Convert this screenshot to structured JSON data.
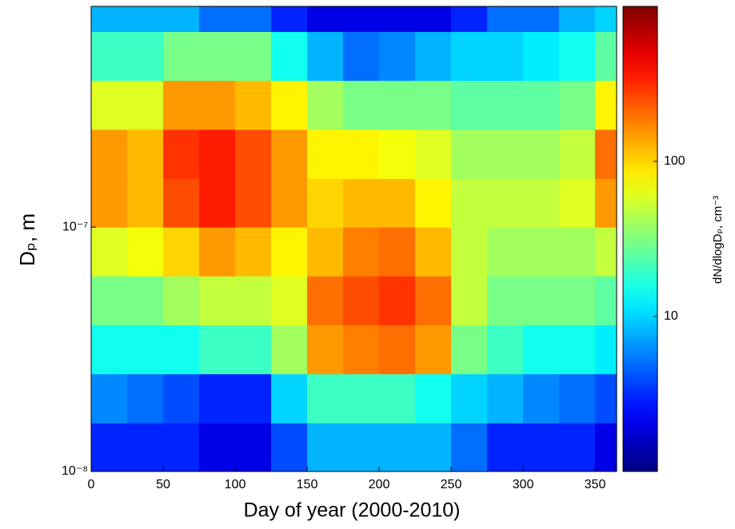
{
  "chart_data": {
    "type": "heatmap",
    "xlabel": "Day of year (2000-2010)",
    "ylabel": "Dₚ, m",
    "colorbar_label": "dN/dlogDₚ, cm⁻³",
    "xlim": [
      0,
      365
    ],
    "xticks": [
      0,
      50,
      100,
      150,
      200,
      250,
      300,
      350
    ],
    "ylim": [
      1e-08,
      8e-07
    ],
    "yscale": "log",
    "yticks": [
      {
        "value": 1e-08,
        "label": "10⁻⁸"
      },
      {
        "value": 1e-07,
        "label": "10⁻⁷"
      }
    ],
    "x_edges": [
      0,
      25,
      50,
      75,
      100,
      125,
      150,
      175,
      200,
      225,
      250,
      275,
      300,
      325,
      350,
      365
    ],
    "y_edges": [
      1e-08,
      1.58e-08,
      2.51e-08,
      3.98e-08,
      6.31e-08,
      1e-07,
      1.58e-07,
      2.51e-07,
      3.98e-07,
      6.31e-07,
      8e-07
    ],
    "z": [
      [
        3,
        3,
        3,
        2,
        2,
        4,
        8,
        8,
        8,
        8,
        5,
        3,
        3,
        3,
        2
      ],
      [
        6,
        5,
        4,
        3,
        3,
        10,
        20,
        20,
        20,
        15,
        10,
        8,
        6,
        5,
        4
      ],
      [
        15,
        15,
        15,
        20,
        20,
        40,
        150,
        180,
        200,
        150,
        30,
        20,
        15,
        15,
        12
      ],
      [
        30,
        30,
        40,
        50,
        50,
        60,
        200,
        250,
        300,
        200,
        50,
        30,
        30,
        30,
        25
      ],
      [
        60,
        70,
        100,
        150,
        120,
        80,
        120,
        180,
        200,
        120,
        50,
        40,
        40,
        40,
        50
      ],
      [
        150,
        120,
        250,
        350,
        250,
        150,
        100,
        120,
        120,
        80,
        50,
        50,
        50,
        60,
        150
      ],
      [
        150,
        120,
        300,
        350,
        250,
        150,
        80,
        80,
        70,
        60,
        40,
        40,
        40,
        50,
        200
      ],
      [
        60,
        60,
        150,
        150,
        120,
        80,
        40,
        30,
        30,
        30,
        25,
        25,
        25,
        30,
        80
      ],
      [
        20,
        20,
        30,
        30,
        30,
        15,
        8,
        5,
        6,
        8,
        10,
        10,
        12,
        15,
        25
      ],
      [
        8,
        8,
        8,
        5,
        5,
        3,
        2,
        2,
        2,
        2,
        3,
        5,
        5,
        8,
        10
      ]
    ],
    "colormap": "jet",
    "colorscale": "log",
    "clim": [
      1,
      1000
    ],
    "cticks": [
      10,
      100
    ]
  }
}
